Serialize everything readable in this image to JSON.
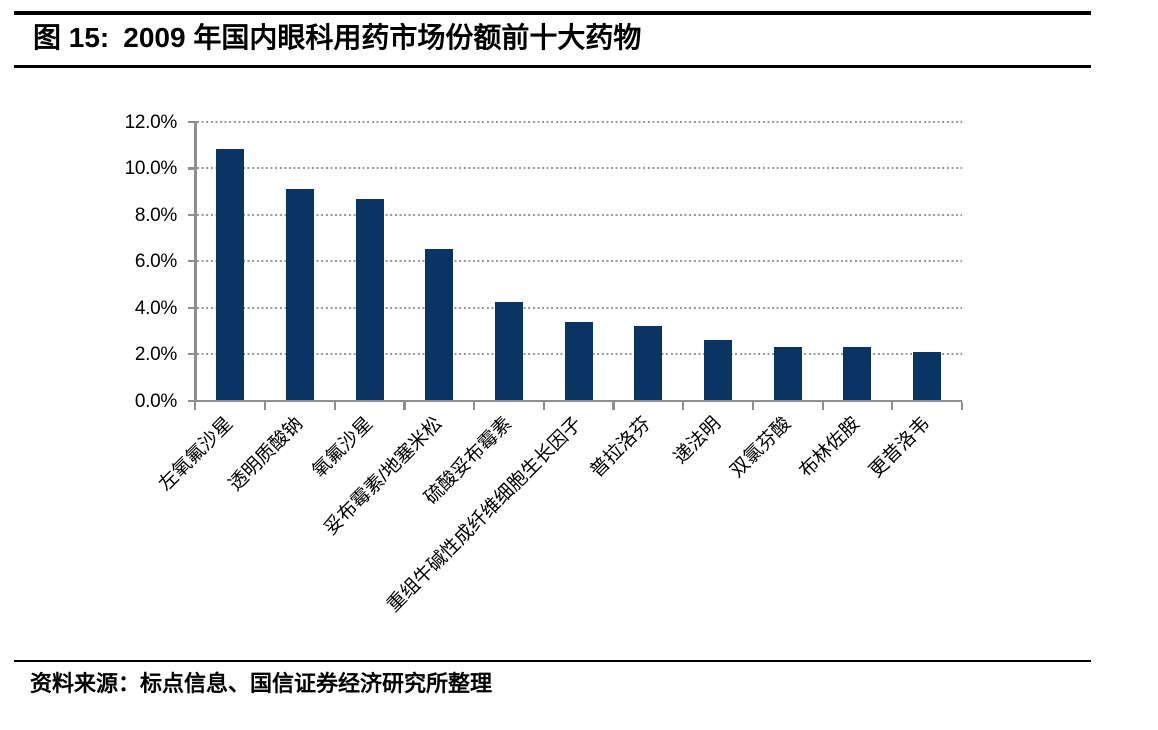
{
  "header": {
    "figure_label": "图 15:",
    "title": "2009 年国内眼科用药市场份额前十大药物"
  },
  "footer": {
    "source": "资料来源：标点信息、国信证券经济研究所整理"
  },
  "colors": {
    "bar": "#0a3463",
    "axis": "#8e8e8e",
    "grid_dot": "#9a9a9a",
    "text": "#000000",
    "rule": "#000000"
  },
  "chart_data": {
    "type": "bar",
    "title": "2009 年国内眼科用药市场份额前十大药物",
    "categories": [
      "左氧氟沙星",
      "透明质酸钠",
      "氧氟沙星",
      "妥布霉素/地塞米松",
      "硫酸妥布霉素",
      "重组牛碱性成纤维细胞生长因子",
      "普拉洛芬",
      "递法明",
      "双氯芬酸",
      "布林佐胺",
      "更昔洛韦"
    ],
    "values": [
      10.85,
      9.1,
      8.7,
      6.55,
      4.25,
      3.4,
      3.2,
      2.6,
      2.3,
      2.3,
      2.1
    ],
    "unit": "%",
    "xlabel": "",
    "ylabel": "",
    "ylim": [
      0,
      12
    ],
    "ytick_step": 2,
    "ytick_labels": [
      "0.0%",
      "2.0%",
      "4.0%",
      "6.0%",
      "8.0%",
      "10.0%",
      "12.0%"
    ],
    "grid": "horizontal-dotted",
    "legend": "none"
  }
}
